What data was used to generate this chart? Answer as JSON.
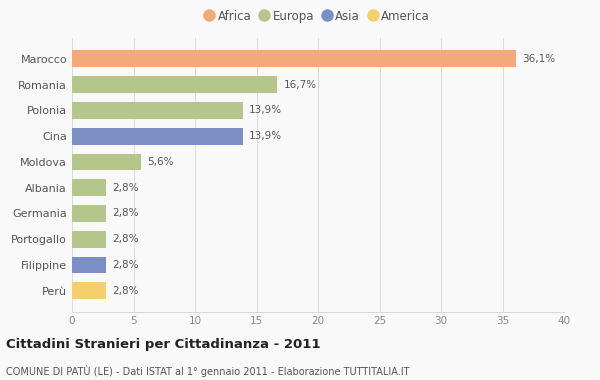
{
  "categories": [
    "Marocco",
    "Romania",
    "Polonia",
    "Cina",
    "Moldova",
    "Albania",
    "Germania",
    "Portogallo",
    "Filippine",
    "Perù"
  ],
  "values": [
    36.1,
    16.7,
    13.9,
    13.9,
    5.6,
    2.8,
    2.8,
    2.8,
    2.8,
    2.8
  ],
  "labels": [
    "36,1%",
    "16,7%",
    "13,9%",
    "13,9%",
    "5,6%",
    "2,8%",
    "2,8%",
    "2,8%",
    "2,8%",
    "2,8%"
  ],
  "colors": [
    "#F4A97A",
    "#B5C68A",
    "#B5C68A",
    "#7B8FC4",
    "#B5C68A",
    "#B5C68A",
    "#B5C68A",
    "#B5C68A",
    "#7B8FC4",
    "#F5CF6E"
  ],
  "legend_labels": [
    "Africa",
    "Europa",
    "Asia",
    "America"
  ],
  "legend_colors": [
    "#F4A97A",
    "#B5C68A",
    "#7B8FC4",
    "#F5CF6E"
  ],
  "title": "Cittadini Stranieri per Cittadinanza - 2011",
  "subtitle": "COMUNE DI PATÙ (LE) - Dati ISTAT al 1° gennaio 2011 - Elaborazione TUTTITALIA.IT",
  "xlim": [
    0,
    40
  ],
  "xticks": [
    0,
    5,
    10,
    15,
    20,
    25,
    30,
    35,
    40
  ],
  "background_color": "#f9f9f9",
  "bar_height": 0.65
}
